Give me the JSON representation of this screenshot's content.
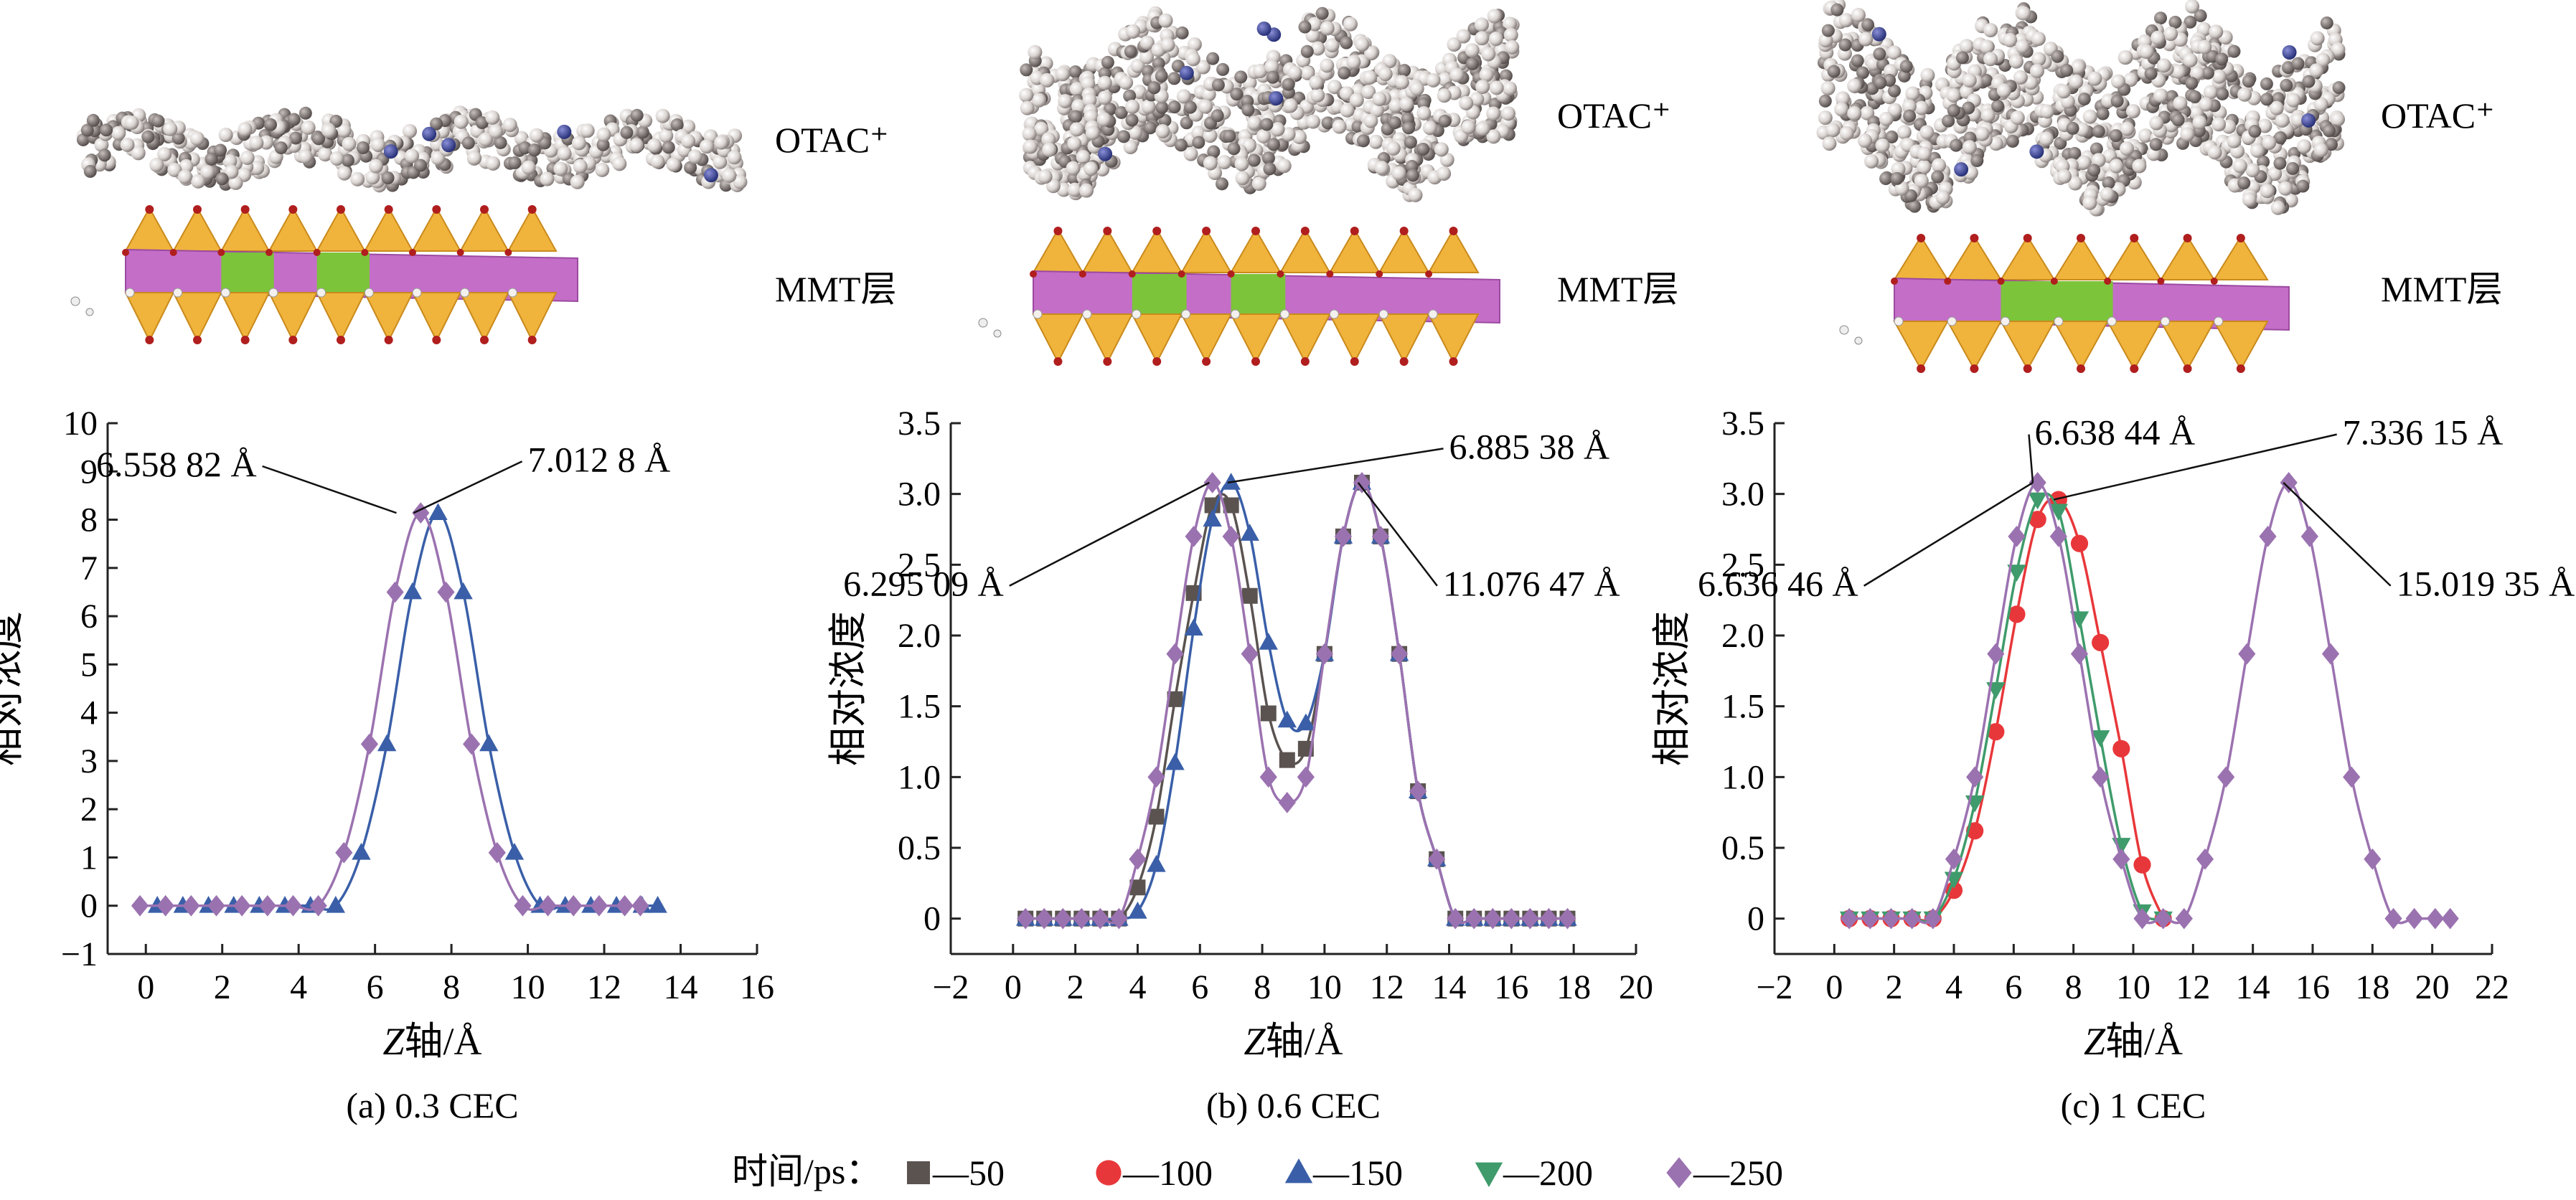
{
  "legend": {
    "title": "时间/ps：",
    "items": [
      {
        "label": "—50",
        "color": "#5a5350",
        "marker": "square"
      },
      {
        "label": "—100",
        "color": "#e8373a",
        "marker": "circle"
      },
      {
        "label": "—150",
        "color": "#3a5fa8",
        "marker": "triangle-up"
      },
      {
        "label": "—200",
        "color": "#3f9b6b",
        "marker": "triangle-down"
      },
      {
        "label": "—250",
        "color": "#9b72b0",
        "marker": "diamond"
      }
    ]
  },
  "structures": [
    {
      "top_label": "OTAC⁺",
      "bottom_label": "MMT层"
    },
    {
      "top_label": "OTAC⁺",
      "bottom_label": "MMT层"
    },
    {
      "top_label": "OTAC⁺",
      "bottom_label": "MMT层"
    }
  ],
  "chart_data": [
    {
      "type": "line",
      "caption": "(a) 0.3 CEC",
      "xlabel_italic": "Z",
      "xlabel_rest": "轴/Å",
      "ylabel": "相对浓度",
      "xlim": [
        -1,
        16
      ],
      "ylim": [
        -1,
        10
      ],
      "xticks": [
        0,
        2,
        4,
        6,
        8,
        10,
        12,
        14,
        16
      ],
      "yticks": [
        -1,
        0,
        1,
        2,
        3,
        4,
        5,
        6,
        7,
        8,
        9,
        10
      ],
      "ytick_labels": [
        "−1",
        "0",
        "1",
        "2",
        "3",
        "4",
        "5",
        "6",
        "7",
        "8",
        "9",
        "10"
      ],
      "xtick_labels": [
        "0",
        "2",
        "4",
        "6",
        "8",
        "10",
        "12",
        "14",
        "16"
      ],
      "series": [
        {
          "name": "150",
          "color": "#3a5fa8",
          "marker": "triangle-up",
          "x": [
            0.3,
            0.97,
            1.64,
            2.3,
            2.97,
            3.64,
            4.31,
            4.97,
            5.64,
            6.31,
            6.98,
            7.65,
            8.31,
            8.98,
            9.65,
            10.32,
            10.98,
            11.65,
            12.32,
            12.99,
            13.4
          ],
          "y": [
            0,
            0,
            0,
            0,
            0,
            0,
            0,
            0,
            1.1,
            3.35,
            6.5,
            8.14,
            6.5,
            3.35,
            1.1,
            0,
            0,
            0,
            0,
            0,
            0
          ]
        },
        {
          "name": "250",
          "color": "#9b72b0",
          "marker": "diamond",
          "x": [
            0.3,
            0.97,
            1.64,
            2.3,
            2.97,
            3.64,
            4.31,
            4.97,
            5.64,
            6.31,
            6.98,
            7.65,
            8.31,
            8.98,
            9.65,
            10.32,
            10.98,
            11.65,
            12.32,
            12.99,
            13.4
          ],
          "y": [
            0,
            0,
            0,
            0,
            0,
            0,
            0,
            0,
            1.1,
            3.35,
            6.5,
            8.14,
            6.5,
            3.35,
            1.1,
            0,
            0,
            0,
            0,
            0,
            0
          ],
          "x_shift": -0.454
        }
      ],
      "annotations": [
        {
          "text": "6.558 82 Å",
          "x": 6.56,
          "y": 8.14,
          "tx": 2.9,
          "ty": 8.9
        },
        {
          "text": "7.012 8 Å",
          "x": 7.01,
          "y": 8.14,
          "tx": 10.0,
          "ty": 9.0
        }
      ]
    },
    {
      "type": "line",
      "caption": "(b) 0.6 CEC",
      "xlabel_italic": "Z",
      "xlabel_rest": "轴/Å",
      "ylabel": "相对浓度",
      "xlim": [
        -2,
        20
      ],
      "ylim": [
        -0.25,
        3.5
      ],
      "xticks": [
        -2,
        0,
        2,
        4,
        6,
        8,
        10,
        12,
        14,
        16,
        18,
        20
      ],
      "xtick_labels": [
        "−2",
        "0",
        "2",
        "4",
        "6",
        "8",
        "10",
        "12",
        "14",
        "16",
        "18",
        "20"
      ],
      "yticks": [
        0,
        0.5,
        1.0,
        1.5,
        2.0,
        2.5,
        3.0,
        3.5
      ],
      "ytick_labels": [
        "0",
        "0.5",
        "1.0",
        "1.5",
        "2.0",
        "2.5",
        "3.0",
        "3.5"
      ],
      "series": [
        {
          "name": "50",
          "color": "#5a5350",
          "marker": "square",
          "x": [
            0.4,
            1.0,
            1.6,
            2.2,
            2.8,
            3.4,
            4.0,
            4.6,
            5.2,
            5.8,
            6.4,
            7.0,
            7.6,
            8.2,
            8.8,
            9.4,
            10.0,
            10.6,
            11.2,
            11.8,
            12.4,
            13.0,
            13.6,
            14.2,
            14.8,
            15.4,
            16.0,
            16.6,
            17.2,
            17.8
          ],
          "y": [
            0,
            0,
            0,
            0,
            0,
            0,
            0.22,
            0.72,
            1.55,
            2.3,
            2.92,
            2.92,
            2.28,
            1.45,
            1.12,
            1.2,
            1.87,
            2.7,
            3.08,
            2.7,
            1.87,
            0.9,
            0.42,
            0,
            0,
            0,
            0,
            0,
            0,
            0
          ]
        },
        {
          "name": "150",
          "color": "#3a5fa8",
          "marker": "triangle-up",
          "x": [
            0.4,
            1.0,
            1.6,
            2.2,
            2.8,
            3.4,
            4.0,
            4.6,
            5.2,
            5.8,
            6.4,
            7.0,
            7.6,
            8.2,
            8.8,
            9.4,
            10.0,
            10.6,
            11.2,
            11.8,
            12.4,
            13.0,
            13.6,
            14.2,
            14.8,
            15.4,
            16.0,
            16.6,
            17.2,
            17.8
          ],
          "y": [
            0,
            0,
            0,
            0,
            0,
            0,
            0.05,
            0.38,
            1.1,
            2.05,
            2.82,
            3.08,
            2.72,
            1.95,
            1.4,
            1.38,
            1.87,
            2.7,
            3.08,
            2.7,
            1.87,
            0.9,
            0.42,
            0,
            0,
            0,
            0,
            0,
            0,
            0
          ]
        },
        {
          "name": "250",
          "color": "#9b72b0",
          "marker": "diamond",
          "x": [
            0.4,
            1.0,
            1.6,
            2.2,
            2.8,
            3.4,
            4.0,
            4.6,
            5.2,
            5.8,
            6.4,
            7.0,
            7.6,
            8.2,
            8.8,
            9.4,
            10.0,
            10.6,
            11.2,
            11.8,
            12.4,
            13.0,
            13.6,
            14.2,
            14.8,
            15.4,
            16.0,
            16.6,
            17.2,
            17.8
          ],
          "y": [
            0,
            0,
            0,
            0,
            0,
            0,
            0.42,
            1.0,
            1.87,
            2.7,
            3.08,
            2.7,
            1.87,
            1.0,
            0.82,
            1.0,
            1.87,
            2.7,
            3.08,
            2.7,
            1.87,
            0.9,
            0.42,
            0,
            0,
            0,
            0,
            0,
            0,
            0
          ]
        }
      ],
      "annotations": [
        {
          "text": "6.885 38 Å",
          "x": 6.89,
          "y": 3.08,
          "tx": 14.0,
          "ty": 3.25
        },
        {
          "text": "6.295 09 Å",
          "x": 6.3,
          "y": 3.08,
          "tx": -0.3,
          "ty": 2.28
        },
        {
          "text": "11.076 47 Å",
          "x": 11.08,
          "y": 3.08,
          "tx": 13.8,
          "ty": 2.28
        }
      ]
    },
    {
      "type": "line",
      "caption": "(c) 1 CEC",
      "xlabel_italic": "Z",
      "xlabel_rest": "轴/Å",
      "ylabel": "相对浓度",
      "xlim": [
        -2,
        22
      ],
      "ylim": [
        -0.25,
        3.5
      ],
      "xticks": [
        -2,
        0,
        2,
        4,
        6,
        8,
        10,
        12,
        14,
        16,
        18,
        20,
        22
      ],
      "xtick_labels": [
        "−2",
        "0",
        "2",
        "4",
        "6",
        "8",
        "10",
        "12",
        "14",
        "16",
        "18",
        "20",
        "22"
      ],
      "yticks": [
        0,
        0.5,
        1.0,
        1.5,
        2.0,
        2.5,
        3.0,
        3.5
      ],
      "ytick_labels": [
        "0",
        "0.5",
        "1.0",
        "1.5",
        "2.0",
        "2.5",
        "3.0",
        "3.5"
      ],
      "series": [
        {
          "name": "100",
          "color": "#e8373a",
          "marker": "circle",
          "x": [
            0.5,
            1.2,
            1.9,
            2.6,
            3.3,
            4.0,
            4.7,
            5.4,
            6.1,
            6.8,
            7.5,
            8.2,
            8.9,
            9.6,
            10.3,
            11.0
          ],
          "y": [
            0,
            0,
            0,
            0,
            0,
            0.2,
            0.62,
            1.32,
            2.15,
            2.82,
            2.96,
            2.65,
            1.95,
            1.2,
            0.38,
            0
          ]
        },
        {
          "name": "200",
          "color": "#3f9b6b",
          "marker": "triangle-down",
          "x": [
            0.5,
            1.2,
            1.9,
            2.6,
            3.3,
            4.0,
            4.7,
            5.4,
            6.1,
            6.8,
            7.5,
            8.2,
            8.9,
            9.6,
            10.3,
            11.0
          ],
          "y": [
            0,
            0,
            0,
            0,
            0,
            0.28,
            0.82,
            1.62,
            2.45,
            2.96,
            2.88,
            2.12,
            1.28,
            0.52,
            0.05,
            0
          ]
        },
        {
          "name": "250",
          "color": "#9b72b0",
          "marker": "diamond",
          "x": [
            0.5,
            1.2,
            1.9,
            2.6,
            3.3,
            4.0,
            4.7,
            5.4,
            6.1,
            6.8,
            7.5,
            8.2,
            8.9,
            9.6,
            10.3,
            11.0,
            11.7,
            12.4,
            13.1,
            13.8,
            14.5,
            15.2,
            15.9,
            16.6,
            17.3,
            18.0,
            18.7,
            19.4,
            20.1,
            20.6
          ],
          "y": [
            0,
            0,
            0,
            0,
            0,
            0.42,
            1.0,
            1.87,
            2.7,
            3.08,
            2.7,
            1.87,
            1.0,
            0.42,
            0,
            0,
            0,
            0.42,
            1.0,
            1.87,
            2.7,
            3.08,
            2.7,
            1.87,
            1.0,
            0.42,
            0,
            0,
            0,
            0
          ]
        }
      ],
      "annotations": [
        {
          "text": "6.638 44 Å",
          "x": 6.64,
          "y": 3.08,
          "tx": 6.7,
          "ty": 3.35
        },
        {
          "text": "7.336 15 Å",
          "x": 7.34,
          "y": 2.96,
          "tx": 17.0,
          "ty": 3.35
        },
        {
          "text": "6.636 46 Å",
          "x": 6.64,
          "y": 3.08,
          "tx": 0.8,
          "ty": 2.28
        },
        {
          "text": "15.019 35 Å",
          "x": 15.02,
          "y": 3.08,
          "tx": 18.8,
          "ty": 2.28
        }
      ]
    }
  ]
}
